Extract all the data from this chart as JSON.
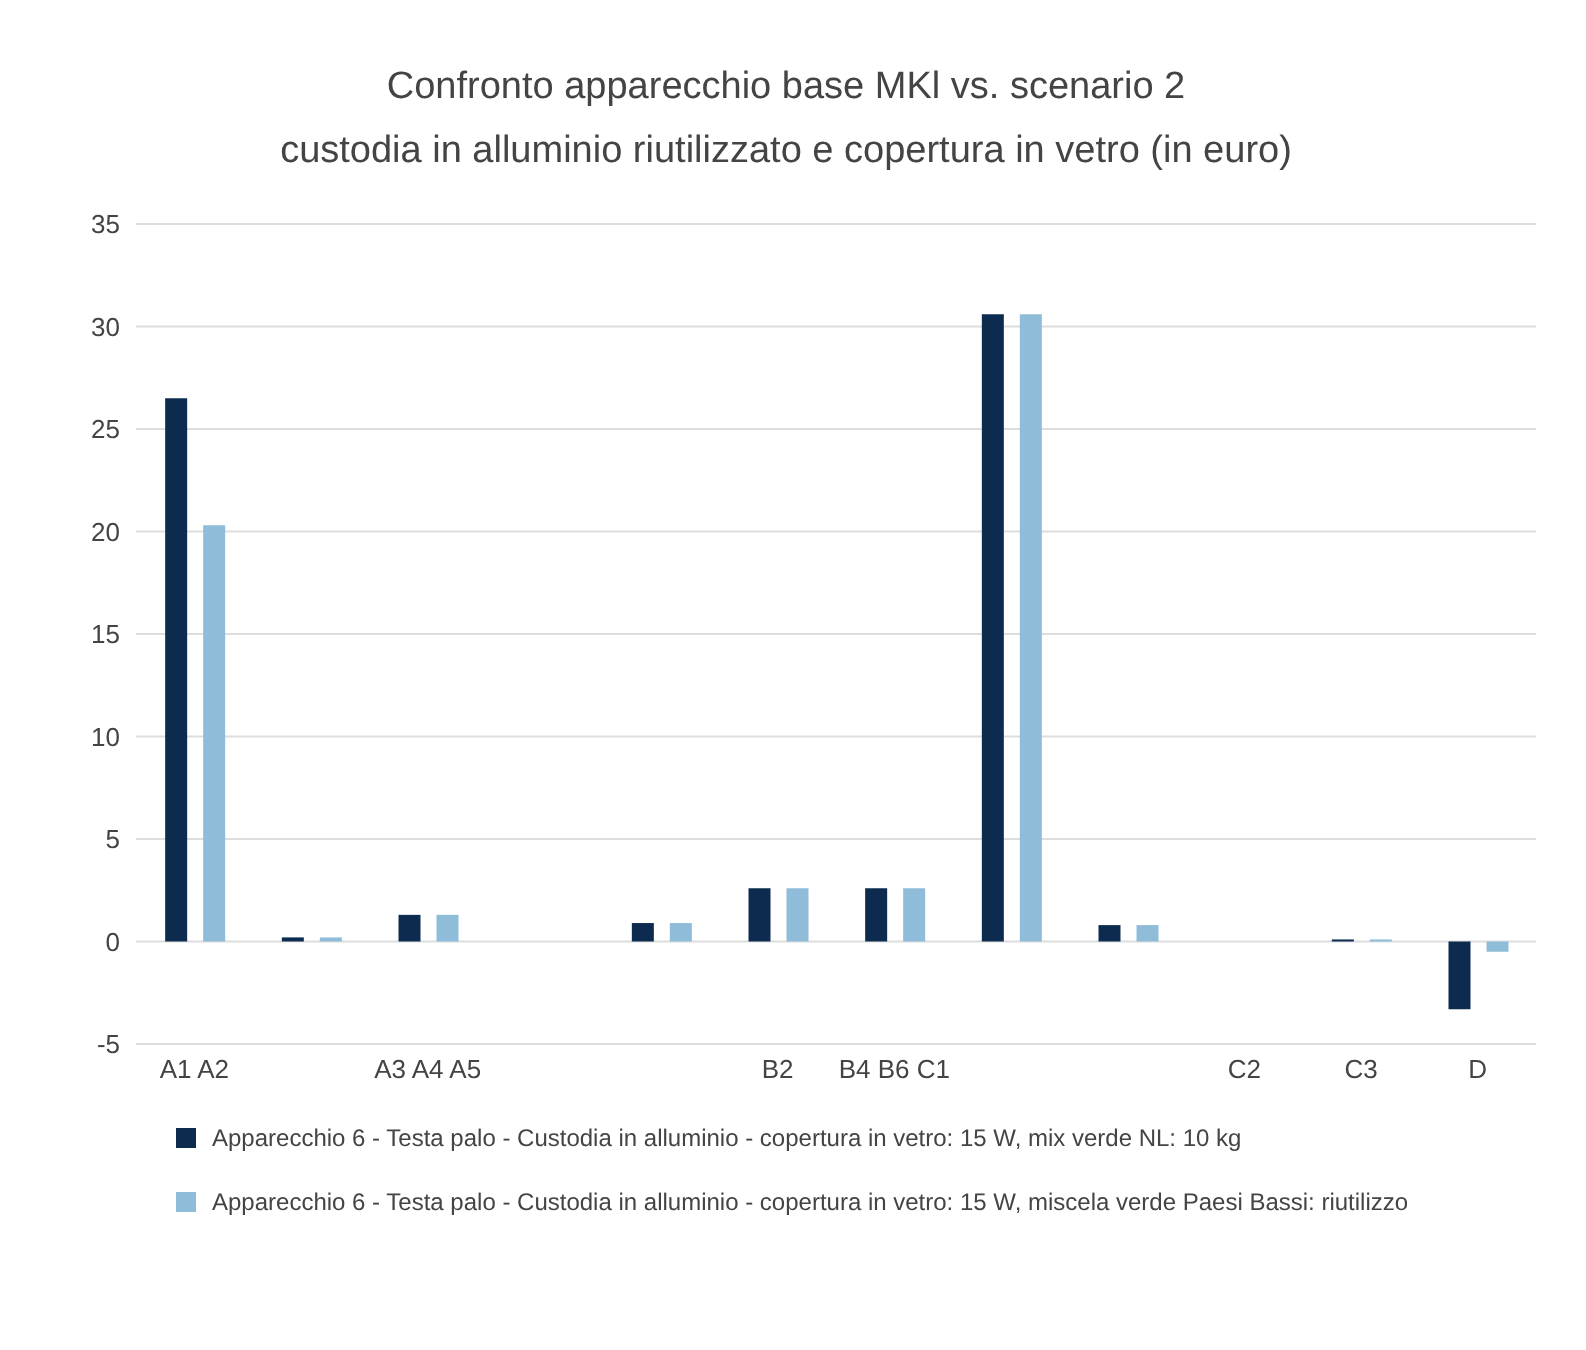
{
  "chart_data": {
    "type": "bar",
    "title": "Confronto apparecchio base MKl vs. scenario 2",
    "subtitle": "custodia in alluminio riutilizzato e copertura in vetro (in euro)",
    "categories": [
      "A1 A2",
      null,
      "A3 A4 A5",
      null,
      null,
      "B2",
      "B4 B6 C1",
      null,
      null,
      "C2",
      "C3",
      "D"
    ],
    "series": [
      {
        "name": "Apparecchio 6 - Testa palo - Custodia in alluminio - copertura in vetro: 15 W, mix verde NL: 10 kg",
        "color": "#0d2b4e",
        "values": [
          26.5,
          0.2,
          1.3,
          0,
          0.9,
          2.6,
          2.6,
          30.6,
          0.8,
          0,
          0.1,
          -3.3
        ]
      },
      {
        "name": "Apparecchio 6 - Testa palo - Custodia in alluminio - copertura in vetro: 15 W, miscela verde Paesi Bassi: riutilizzo",
        "color": "#8fbcd8",
        "values": [
          20.3,
          0.2,
          1.3,
          0,
          0.9,
          2.6,
          2.6,
          30.6,
          0.8,
          0,
          0.1,
          -0.5
        ]
      }
    ],
    "ylim": [
      -5,
      35
    ],
    "yticks": [
      -5,
      0,
      5,
      10,
      15,
      20,
      25,
      30,
      35
    ],
    "grid": "y",
    "legend": "bottom"
  }
}
